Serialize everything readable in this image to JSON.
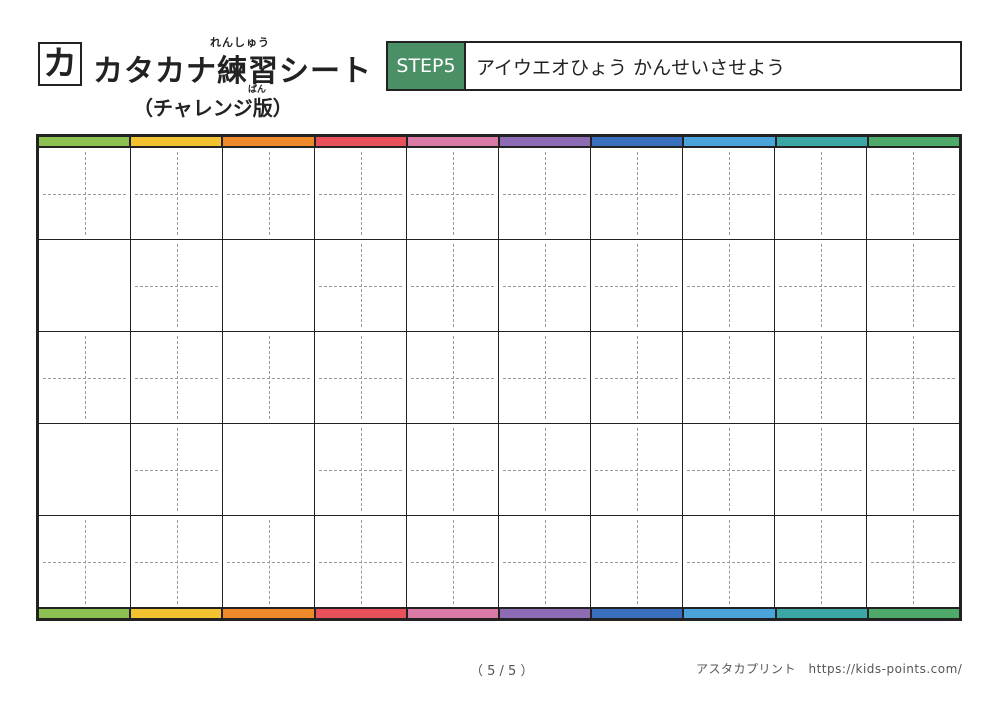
{
  "header": {
    "kana_badge": "カ",
    "title": "カタカナ練習シート",
    "title_ruby": "れんしゅう",
    "subtitle": "（チャレンジ版）",
    "subtitle_ruby": "ばん"
  },
  "step": {
    "label": "STEP5",
    "description": "アイウエオひょう かんせいさせよう"
  },
  "grid": {
    "columns": 10,
    "rows": 5,
    "column_colors": [
      "#8cc152",
      "#f2c230",
      "#ef8a2b",
      "#e8515b",
      "#d97aa6",
      "#8e6bb5",
      "#3a6fbd",
      "#4aa3db",
      "#3aa6a6",
      "#4daa6a"
    ],
    "guide_lines": [
      [
        true,
        true,
        true,
        true,
        true,
        true,
        true,
        true,
        true,
        true
      ],
      [
        false,
        true,
        false,
        true,
        true,
        true,
        true,
        true,
        true,
        true
      ],
      [
        true,
        true,
        true,
        true,
        true,
        true,
        true,
        true,
        true,
        true
      ],
      [
        false,
        true,
        false,
        true,
        true,
        true,
        true,
        true,
        true,
        true
      ],
      [
        true,
        true,
        true,
        true,
        true,
        true,
        true,
        true,
        true,
        true
      ]
    ]
  },
  "footer": {
    "page": "（ 5 / 5 ）",
    "credit": "アスタカプリント　https://kids-points.com/"
  }
}
